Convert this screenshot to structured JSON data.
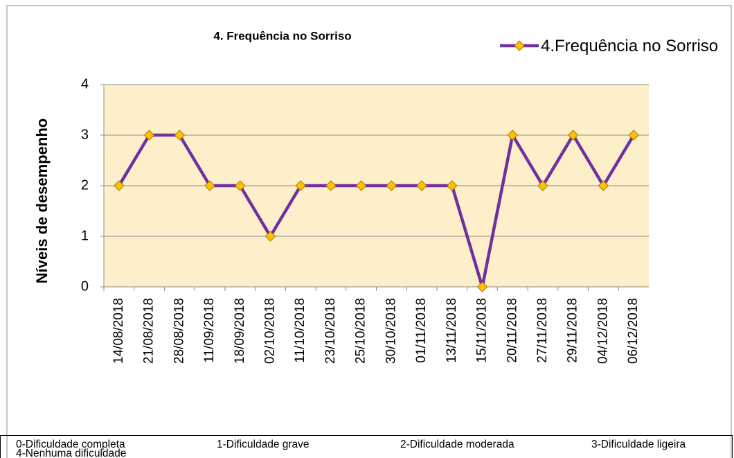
{
  "chart_data": {
    "type": "line",
    "title": "4. Frequência no Sorriso",
    "y_label": "Níveis de desempenho",
    "categories": [
      "14/08/2018",
      "21/08/2018",
      "28/08/2018",
      "11/09/2018",
      "18/09/2018",
      "02/10/2018",
      "11/10/2018",
      "23/10/2018",
      "25/10/2018",
      "30/10/2018",
      "01/11/2018",
      "13/11/2018",
      "15/11/2018",
      "20/11/2018",
      "27/11/2018",
      "29/11/2018",
      "04/12/2018",
      "06/12/2018"
    ],
    "series": [
      {
        "name": "4.Frequência no Sorriso",
        "color": "#7030a0",
        "marker_color": "#ffc000",
        "values": [
          2,
          3,
          3,
          2,
          2,
          1,
          2,
          2,
          2,
          2,
          2,
          2,
          0,
          3,
          2,
          3,
          2,
          3
        ]
      }
    ],
    "ylim": [
      0,
      4
    ],
    "yticks": [
      0,
      1,
      2,
      3,
      4
    ],
    "grid": true,
    "plot_background": "#fcefc9",
    "legend": "top-right"
  },
  "note": [
    "0-Dificuldade completa",
    "1-Dificuldade grave",
    "2-Dificuldade moderada",
    "3-Dificuldade ligeira",
    "4-Nenhuma dificuldade"
  ]
}
